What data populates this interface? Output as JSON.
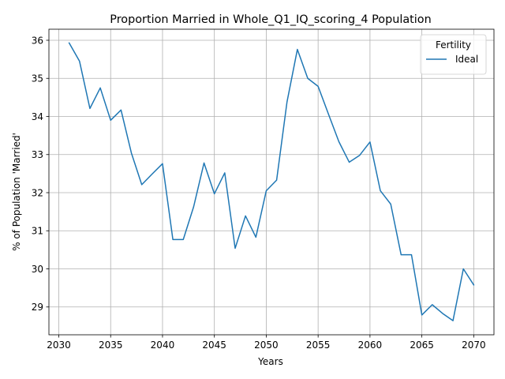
{
  "chart_data": {
    "type": "line",
    "title": "Proportion Married in Whole_Q1_IQ_scoring_4 Population",
    "xlabel": "Years",
    "ylabel": "% of Population 'Married'",
    "xlim": [
      2029.05,
      2071.95
    ],
    "ylim": [
      28.27,
      36.29
    ],
    "xticks": [
      2030,
      2035,
      2040,
      2045,
      2050,
      2055,
      2060,
      2065,
      2070
    ],
    "yticks": [
      29,
      30,
      31,
      32,
      33,
      34,
      35,
      36
    ],
    "grid": true,
    "legend": {
      "title": "Fertility",
      "position": "top-right"
    },
    "series": [
      {
        "name": "Ideal",
        "color": "#1f77b4",
        "x": [
          2031,
          2032,
          2033,
          2034,
          2035,
          2036,
          2037,
          2038,
          2039,
          2040,
          2041,
          2042,
          2043,
          2044,
          2045,
          2046,
          2047,
          2048,
          2049,
          2050,
          2051,
          2052,
          2053,
          2054,
          2055,
          2056,
          2057,
          2058,
          2059,
          2060,
          2061,
          2062,
          2063,
          2064,
          2065,
          2066,
          2067,
          2068,
          2069,
          2070
        ],
        "values": [
          35.93,
          35.45,
          34.21,
          34.75,
          33.9,
          34.17,
          33.04,
          32.21,
          32.49,
          32.76,
          30.77,
          30.77,
          31.63,
          32.78,
          31.97,
          32.52,
          30.54,
          31.39,
          30.83,
          32.05,
          32.33,
          34.38,
          35.76,
          35.0,
          34.79,
          34.06,
          33.34,
          32.8,
          32.98,
          33.33,
          32.05,
          31.7,
          30.37,
          30.37,
          28.79,
          29.06,
          28.83,
          28.64,
          30.0,
          29.58
        ]
      }
    ]
  }
}
